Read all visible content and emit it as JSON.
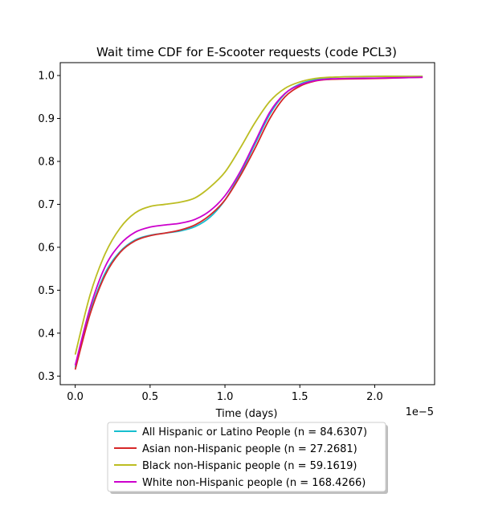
{
  "chart_data": {
    "type": "line",
    "title": "Wait time CDF for E-Scooter  requests (code PCL3)",
    "xlabel": "Time (days)",
    "ylabel": "",
    "x_offset_text": "1e−5",
    "xlim": [
      -1e-06,
      2.4e-05
    ],
    "ylim": [
      0.28,
      1.03
    ],
    "xticks": [
      0,
      5e-06,
      1e-05,
      1.5e-05,
      2e-05
    ],
    "xtick_labels": [
      "0.0",
      "0.5",
      "1.0",
      "1.5",
      "2.0"
    ],
    "yticks": [
      0.3,
      0.4,
      0.5,
      0.6,
      0.7,
      0.8,
      0.9,
      1.0
    ],
    "ytick_labels": [
      "0.3",
      "0.4",
      "0.5",
      "0.6",
      "0.7",
      "0.8",
      "0.9",
      "1.0"
    ],
    "grid": false,
    "legend_position": "below",
    "series": [
      {
        "name": "All Hispanic or Latino People (n = 84.6307)",
        "color": "#17becf",
        "x": [
          0,
          1e-06,
          2e-06,
          3e-06,
          4e-06,
          5e-06,
          6e-06,
          7e-06,
          8e-06,
          9e-06,
          1e-05,
          1.1e-05,
          1.2e-05,
          1.3e-05,
          1.4e-05,
          1.5e-05,
          1.6e-05,
          1.7e-05,
          1.8e-05,
          2e-05,
          2.2e-05,
          2.32e-05
        ],
        "y": [
          0.32,
          0.45,
          0.54,
          0.59,
          0.617,
          0.628,
          0.633,
          0.638,
          0.648,
          0.67,
          0.71,
          0.77,
          0.84,
          0.91,
          0.957,
          0.98,
          0.99,
          0.995,
          0.997,
          0.998,
          0.998,
          0.998
        ]
      },
      {
        "name": "Asian non-Hispanic people (n = 27.2681)",
        "color": "#d62728",
        "x": [
          0,
          1e-06,
          2e-06,
          3e-06,
          4e-06,
          5e-06,
          6e-06,
          7e-06,
          8e-06,
          9e-06,
          1e-05,
          1.1e-05,
          1.2e-05,
          1.3e-05,
          1.4e-05,
          1.5e-05,
          1.6e-05,
          1.7e-05,
          1.8e-05,
          2e-05,
          2.2e-05,
          2.32e-05
        ],
        "y": [
          0.315,
          0.445,
          0.535,
          0.588,
          0.615,
          0.627,
          0.633,
          0.64,
          0.652,
          0.675,
          0.71,
          0.765,
          0.83,
          0.9,
          0.95,
          0.975,
          0.987,
          0.991,
          0.992,
          0.993,
          0.995,
          0.996
        ]
      },
      {
        "name": "Black non-Hispanic people (n = 59.1619)",
        "color": "#bcbd22",
        "x": [
          0,
          1e-06,
          2e-06,
          3e-06,
          4e-06,
          5e-06,
          6e-06,
          7e-06,
          8e-06,
          9e-06,
          1e-05,
          1.1e-05,
          1.2e-05,
          1.3e-05,
          1.4e-05,
          1.5e-05,
          1.6e-05,
          1.7e-05,
          1.8e-05,
          2e-05,
          2.2e-05,
          2.32e-05
        ],
        "y": [
          0.35,
          0.49,
          0.585,
          0.645,
          0.68,
          0.695,
          0.7,
          0.705,
          0.715,
          0.74,
          0.775,
          0.83,
          0.89,
          0.94,
          0.97,
          0.985,
          0.993,
          0.996,
          0.997,
          0.998,
          0.998,
          0.998
        ]
      },
      {
        "name": "White non-Hispanic people (n = 168.4266)",
        "color": "#cc00cc",
        "x": [
          0,
          1e-06,
          2e-06,
          3e-06,
          4e-06,
          5e-06,
          6e-06,
          7e-06,
          8e-06,
          9e-06,
          1e-05,
          1.1e-05,
          1.2e-05,
          1.3e-05,
          1.4e-05,
          1.5e-05,
          1.6e-05,
          1.7e-05,
          1.8e-05,
          2e-05,
          2.2e-05,
          2.32e-05
        ],
        "y": [
          0.325,
          0.46,
          0.555,
          0.607,
          0.635,
          0.647,
          0.652,
          0.656,
          0.665,
          0.685,
          0.72,
          0.775,
          0.845,
          0.915,
          0.958,
          0.978,
          0.988,
          0.992,
          0.993,
          0.994,
          0.995,
          0.996
        ]
      }
    ]
  }
}
